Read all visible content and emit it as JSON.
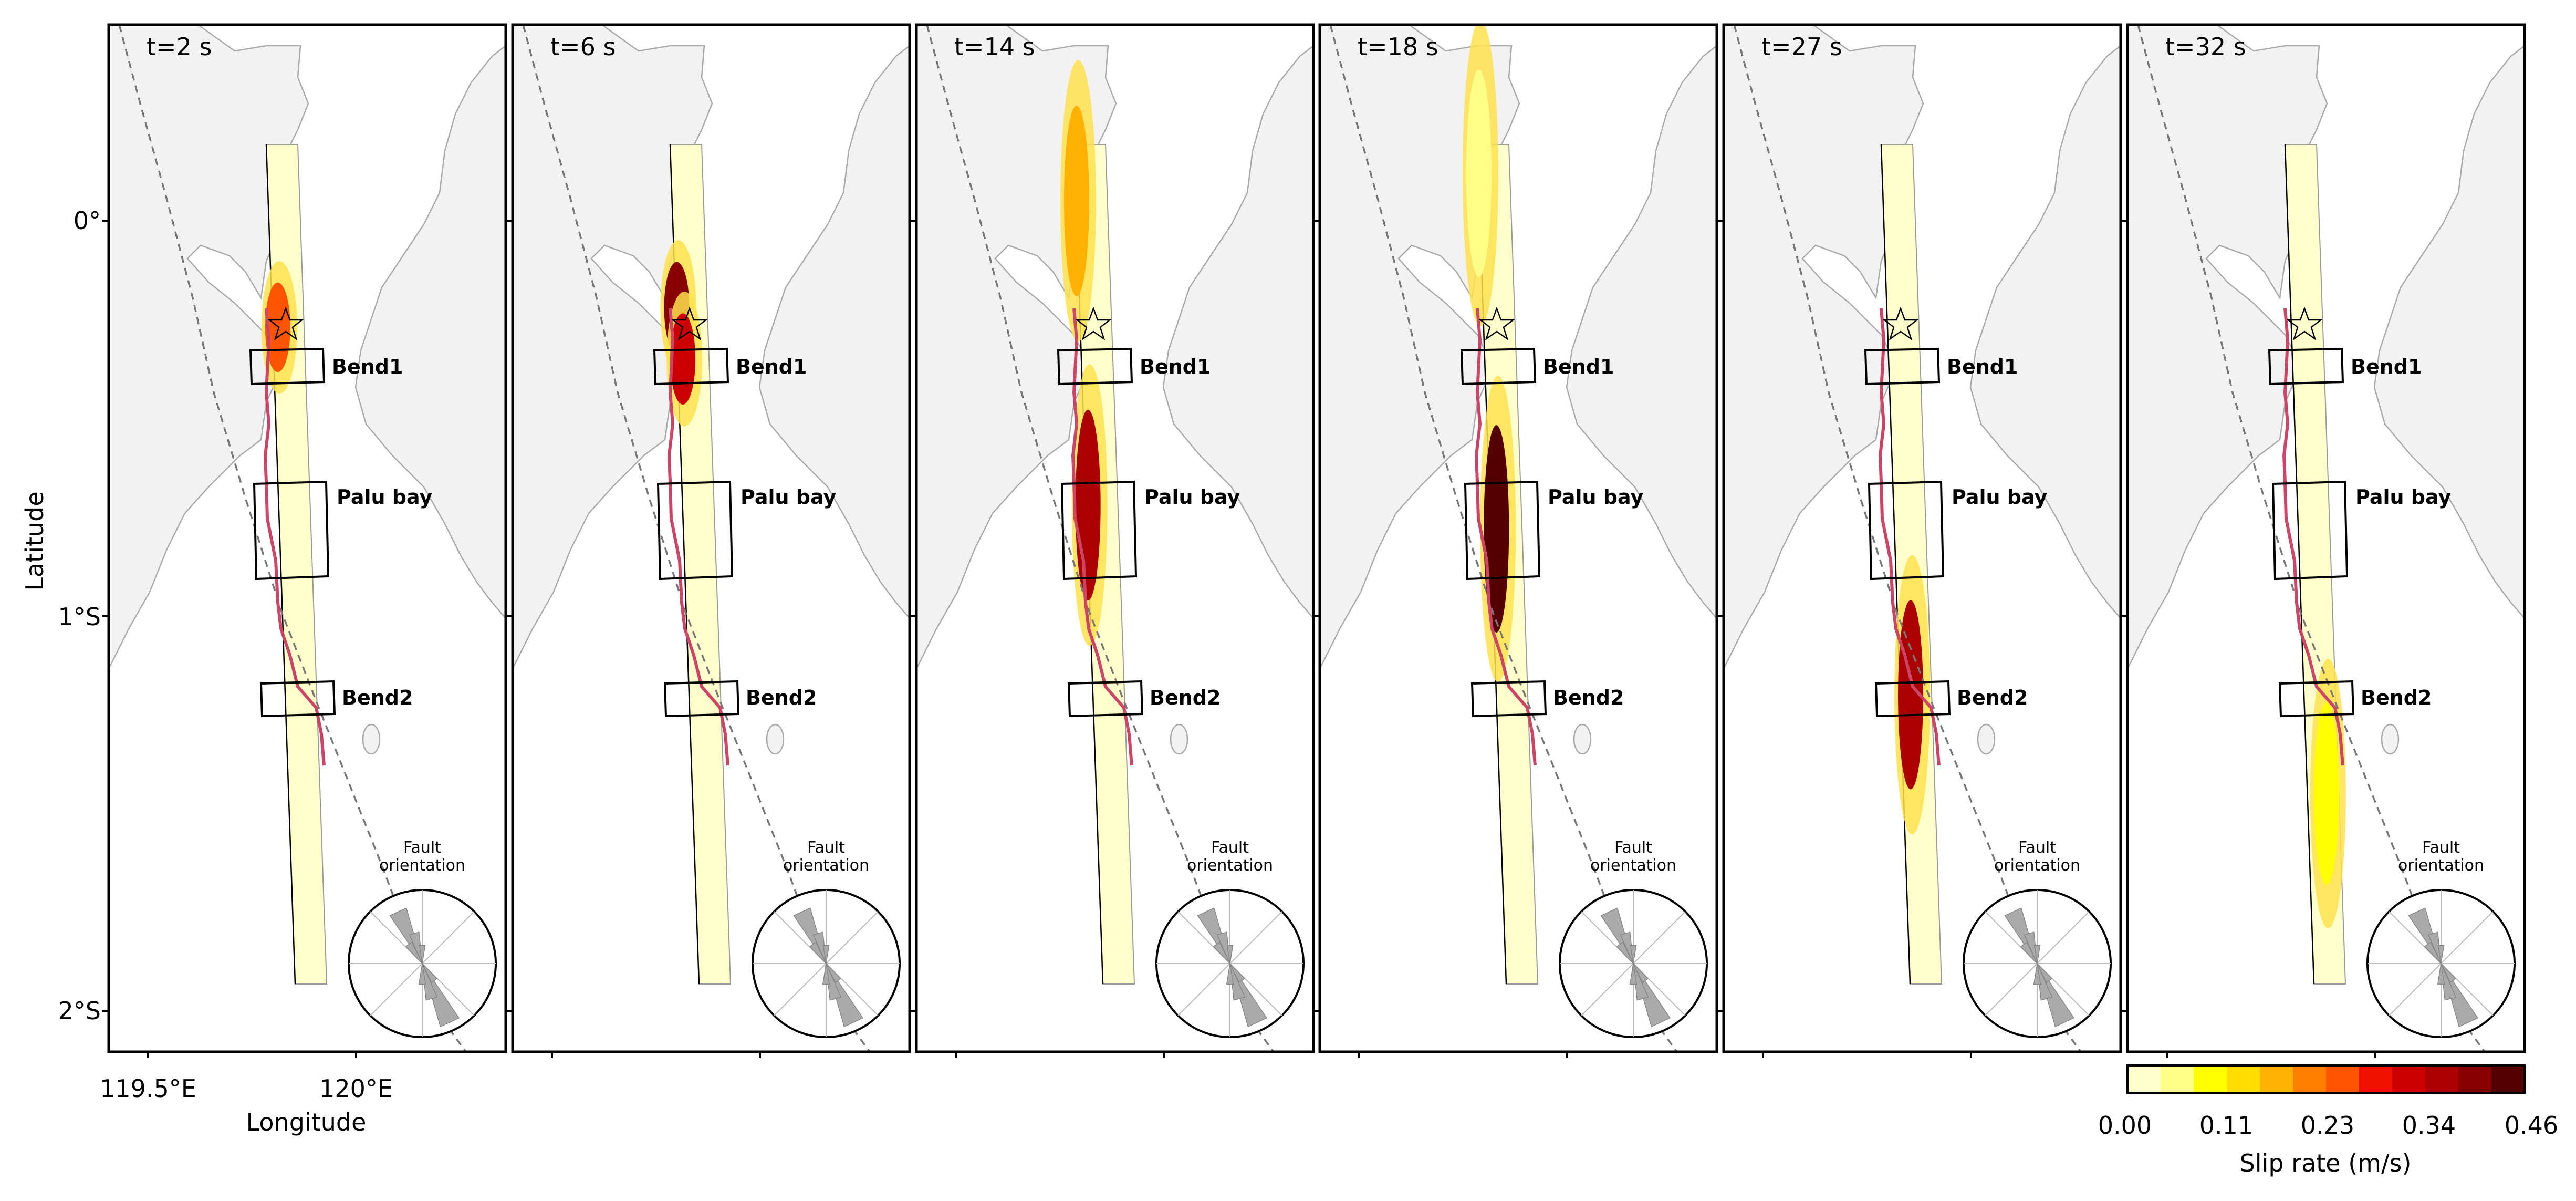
{
  "chart_data": {
    "type": "heatmap",
    "title": "",
    "xlabel": "Longitude",
    "ylabel": "Latitude",
    "xticks": [
      "119.5°E",
      "120°E"
    ],
    "yticks": [
      "0°",
      "1°S",
      "2°S"
    ],
    "xlim": [
      119.45,
      119.95
    ],
    "ylim": [
      -2.1,
      0.5
    ],
    "colorbar": {
      "label": "Slip rate (m/s)",
      "ticks": [
        "0.00",
        "0.11",
        "0.23",
        "0.34",
        "0.46"
      ],
      "range": [
        0,
        0.46
      ],
      "colors": [
        "#ffffcc",
        "#ffff88",
        "#ffff00",
        "#ffdd00",
        "#ffb000",
        "#ff8000",
        "#ff5500",
        "#ee1100",
        "#cc0000",
        "#aa0000",
        "#880000",
        "#550000"
      ]
    },
    "annotations": [
      "Bend1",
      "Palu bay",
      "Bend2"
    ],
    "rose_label": "Fault orientation",
    "panels": [
      {
        "time": "t=2 s",
        "rupture": [
          {
            "lat": -0.27,
            "lon": 119.8,
            "rate": 0.28
          }
        ],
        "rupture_extent": [
          -0.15,
          -0.42
        ]
      },
      {
        "time": "t=6 s",
        "rupture": [
          {
            "lat": -0.22,
            "lon": 119.79,
            "rate": 0.45
          },
          {
            "lat": -0.35,
            "lon": 119.8,
            "rate": 0.36
          }
        ],
        "rupture_extent": [
          0.0,
          -0.55
        ]
      },
      {
        "time": "t=14 s",
        "rupture": [
          {
            "lat": 0.05,
            "lon": 119.79,
            "rate": 0.18
          },
          {
            "lat": -0.72,
            "lon": 119.79,
            "rate": 0.38
          }
        ],
        "rupture_extent": [
          0.2,
          -0.95
        ]
      },
      {
        "time": "t=18 s",
        "rupture": [
          {
            "lat": 0.12,
            "lon": 119.79,
            "rate": 0.08
          },
          {
            "lat": -0.78,
            "lon": 119.8,
            "rate": 0.46
          }
        ],
        "rupture_extent": [
          0.2,
          -1.05
        ]
      },
      {
        "time": "t=27 s",
        "rupture": [
          {
            "lat": -1.2,
            "lon": 119.81,
            "rate": 0.4
          }
        ],
        "rupture_extent": [
          -0.88,
          -1.45
        ]
      },
      {
        "time": "t=32 s",
        "rupture": [
          {
            "lat": -1.45,
            "lon": 119.83,
            "rate": 0.12
          }
        ],
        "rupture_extent": [
          -1.1,
          -1.65
        ]
      }
    ]
  }
}
